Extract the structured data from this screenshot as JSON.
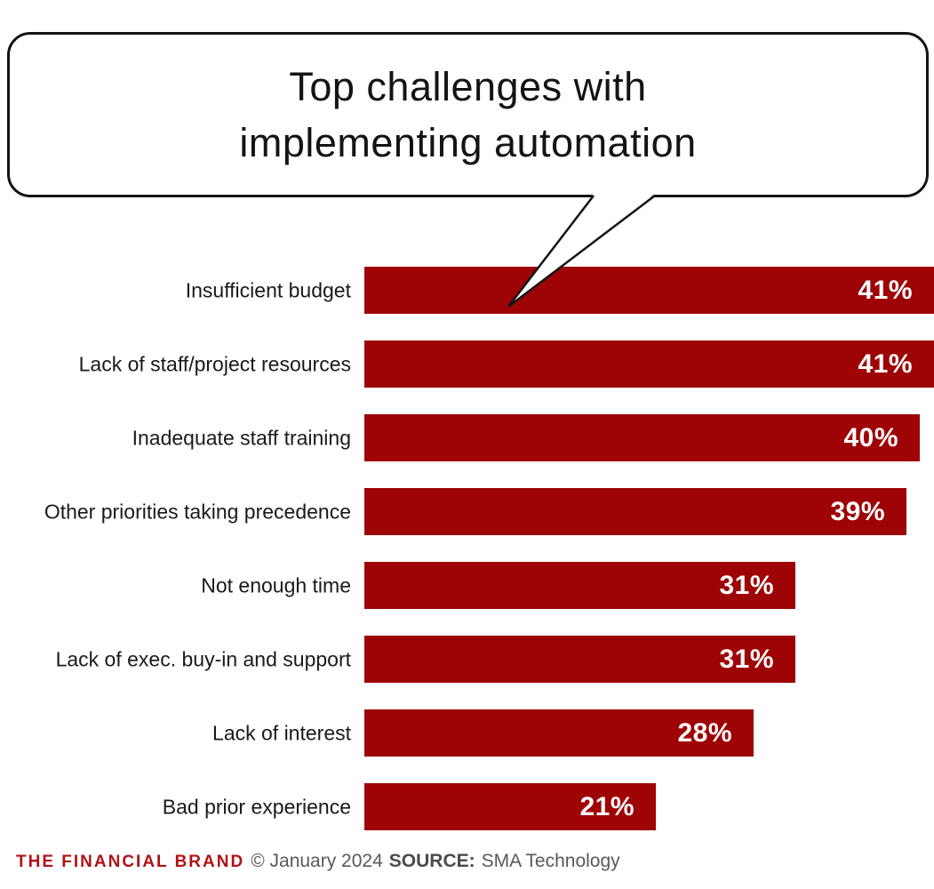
{
  "header": {
    "title": "Top challenges with\nimplementing automation"
  },
  "chart_data": {
    "type": "bar",
    "orientation": "horizontal",
    "title": "Top challenges with implementing automation",
    "categories": [
      "Insufficient budget",
      "Lack of staff/project resources",
      "Inadequate staff training",
      "Other priorities taking precedence",
      "Not enough time",
      "Lack of exec. buy-in and support",
      "Lack of interest",
      "Bad prior experience"
    ],
    "values": [
      41,
      41,
      40,
      39,
      31,
      31,
      28,
      21
    ],
    "value_labels": [
      "41%",
      "41%",
      "40%",
      "39%",
      "31%",
      "31%",
      "28%",
      "21%"
    ],
    "xlim": [
      0,
      41
    ],
    "grid": false,
    "legend": false,
    "bar_color": "#9E0405",
    "category_label_color": "#1A1A1A",
    "value_label_color": "#FFFFFF"
  },
  "footer": {
    "brand": "THE FINANCIAL BRAND",
    "brand_color": "#B01217",
    "copyright": "© January 2024",
    "source_label": "SOURCE:",
    "source_value": "SMA Technology"
  }
}
